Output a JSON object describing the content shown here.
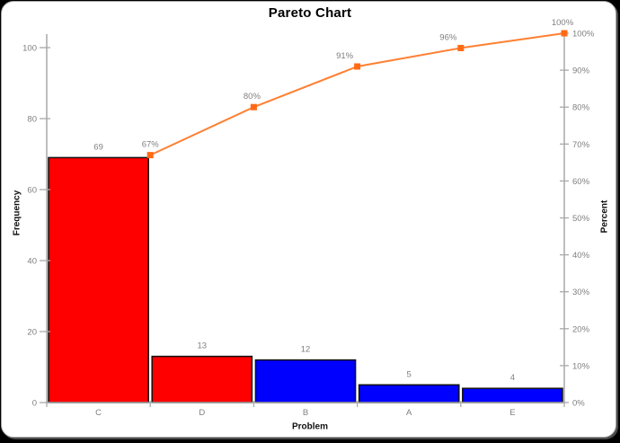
{
  "window": {
    "background": "#000000",
    "card_background": "#ffffff",
    "card_border": "#a8a8a8"
  },
  "chart_data": {
    "type": "bar",
    "subtype": "pareto-with-cumulative-line",
    "title": "Pareto Chart",
    "xlabel": "Problem",
    "ylabel": "Frequency",
    "ylabel_right": "Percent",
    "categories": [
      "C",
      "D",
      "B",
      "A",
      "E"
    ],
    "series": [
      {
        "name": "Frequency",
        "type": "bar",
        "values": [
          69,
          13,
          12,
          5,
          4
        ],
        "data_labels": [
          "69",
          "13",
          "12",
          "5",
          "4"
        ],
        "bar_colors": [
          "#ff0000",
          "#ff0000",
          "#0000ff",
          "#0000ff",
          "#0000ff"
        ]
      },
      {
        "name": "Cumulative Percent",
        "type": "line",
        "values": [
          67,
          80,
          91,
          96,
          100
        ],
        "data_labels": [
          "67%",
          "80%",
          "91%",
          "96%",
          "100%"
        ],
        "color": "#ff8033",
        "marker": "square",
        "marker_color": "#ff6a15"
      }
    ],
    "left_axis": {
      "range": [
        0,
        100
      ],
      "tick_values": [
        0,
        20,
        40,
        60,
        80,
        100
      ],
      "tick_labels": [
        "0",
        "20",
        "40",
        "60",
        "80",
        "100"
      ]
    },
    "right_axis": {
      "range": [
        0,
        100
      ],
      "tick_values": [
        0,
        10,
        20,
        30,
        40,
        50,
        60,
        70,
        80,
        90,
        100
      ],
      "tick_labels": [
        "0%",
        "10%",
        "20%",
        "30%",
        "40%",
        "50%",
        "60%",
        "70%",
        "80%",
        "90%",
        "100%"
      ]
    },
    "grid": false,
    "legend": "none",
    "styles": {
      "axis_line": "#a9a9a9",
      "tick_text": "#7f7f7f",
      "data_label_text": "#7f7f7f",
      "category_text": "#7f7f7f",
      "title_color": "#000000",
      "axis_label_color": "#111111",
      "bar_border": "#111111"
    }
  }
}
